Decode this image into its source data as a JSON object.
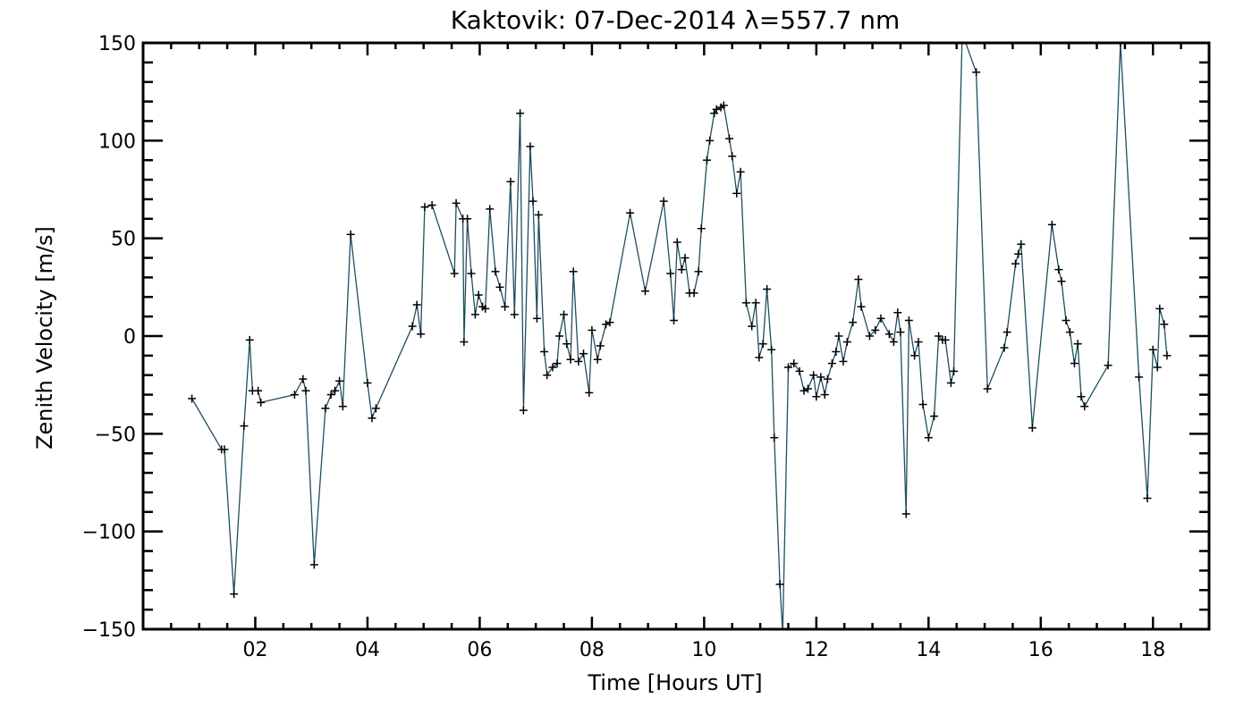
{
  "chart_data": {
    "type": "line",
    "title": "Kaktovik: 07-Dec-2014 λ=557.7 nm",
    "xlabel": "Time [Hours UT]",
    "ylabel": "Zenith Velocity [m/s]",
    "xlim": [
      0.0,
      19.0
    ],
    "ylim": [
      -150,
      150
    ],
    "xticks": [
      {
        "value": 2,
        "label": "02"
      },
      {
        "value": 4,
        "label": "04"
      },
      {
        "value": 6,
        "label": "06"
      },
      {
        "value": 8,
        "label": "08"
      },
      {
        "value": 10,
        "label": "10"
      },
      {
        "value": 12,
        "label": "12"
      },
      {
        "value": 14,
        "label": "14"
      },
      {
        "value": 16,
        "label": "16"
      },
      {
        "value": 18,
        "label": "18"
      }
    ],
    "yticks": [
      {
        "value": -150,
        "label": "−150"
      },
      {
        "value": -100,
        "label": "−100"
      },
      {
        "value": -50,
        "label": "−50"
      },
      {
        "value": 0,
        "label": "0"
      },
      {
        "value": 50,
        "label": "50"
      },
      {
        "value": 100,
        "label": "100"
      },
      {
        "value": 150,
        "label": "150"
      }
    ],
    "grid": false,
    "line_color": "#1f4e5f",
    "marker_color": "#000000",
    "series": [
      {
        "marker": "plus",
        "points": [
          [
            0.87,
            -32
          ],
          [
            1.4,
            -58
          ],
          [
            1.45,
            -58
          ],
          [
            1.62,
            -132
          ],
          [
            1.8,
            -46
          ],
          [
            1.9,
            -2
          ],
          [
            1.95,
            -28
          ],
          [
            2.05,
            -28
          ],
          [
            2.1,
            -34
          ],
          [
            2.7,
            -30
          ],
          [
            2.85,
            -22
          ],
          [
            2.9,
            -28
          ],
          [
            3.05,
            -117
          ],
          [
            3.25,
            -37
          ],
          [
            3.35,
            -30
          ],
          [
            3.42,
            -28
          ],
          [
            3.5,
            -23
          ],
          [
            3.56,
            -36
          ],
          [
            3.7,
            52
          ],
          [
            4.0,
            -24
          ],
          [
            4.08,
            -42
          ],
          [
            4.15,
            -37
          ],
          [
            4.8,
            5
          ],
          [
            4.88,
            16
          ],
          [
            4.95,
            1
          ],
          [
            5.02,
            66
          ],
          [
            5.15,
            67
          ],
          [
            5.55,
            32
          ],
          [
            5.58,
            68
          ],
          [
            5.7,
            60
          ],
          [
            5.72,
            -3
          ],
          [
            5.78,
            60
          ],
          [
            5.85,
            32
          ],
          [
            5.92,
            11
          ],
          [
            5.98,
            21
          ],
          [
            6.05,
            15
          ],
          [
            6.1,
            14
          ],
          [
            6.18,
            65
          ],
          [
            6.28,
            33
          ],
          [
            6.36,
            25
          ],
          [
            6.45,
            15
          ],
          [
            6.55,
            79
          ],
          [
            6.62,
            11
          ],
          [
            6.72,
            114
          ],
          [
            6.78,
            -38
          ],
          [
            6.9,
            97
          ],
          [
            6.95,
            69
          ],
          [
            7.02,
            9
          ],
          [
            7.05,
            62
          ],
          [
            7.15,
            -8
          ],
          [
            7.2,
            -20
          ],
          [
            7.3,
            -16
          ],
          [
            7.38,
            -14
          ],
          [
            7.42,
            0
          ],
          [
            7.5,
            11
          ],
          [
            7.55,
            -4
          ],
          [
            7.62,
            -12
          ],
          [
            7.67,
            33
          ],
          [
            7.76,
            -13
          ],
          [
            7.85,
            -9
          ],
          [
            7.95,
            -29
          ],
          [
            8.0,
            3
          ],
          [
            8.1,
            -12
          ],
          [
            8.15,
            -5
          ],
          [
            8.25,
            6
          ],
          [
            8.32,
            7
          ],
          [
            8.68,
            63
          ],
          [
            8.95,
            23
          ],
          [
            9.28,
            69
          ],
          [
            9.4,
            32
          ],
          [
            9.46,
            8
          ],
          [
            9.52,
            48
          ],
          [
            9.6,
            34
          ],
          [
            9.66,
            40
          ],
          [
            9.74,
            22
          ],
          [
            9.82,
            22
          ],
          [
            9.9,
            33
          ],
          [
            9.95,
            55
          ],
          [
            10.05,
            90
          ],
          [
            10.1,
            100
          ],
          [
            10.18,
            114
          ],
          [
            10.22,
            116
          ],
          [
            10.3,
            117
          ],
          [
            10.35,
            118
          ],
          [
            10.45,
            101
          ],
          [
            10.5,
            92
          ],
          [
            10.58,
            73
          ],
          [
            10.65,
            84
          ],
          [
            10.75,
            17
          ],
          [
            10.85,
            5
          ],
          [
            10.92,
            17
          ],
          [
            10.98,
            -11
          ],
          [
            11.05,
            -4
          ],
          [
            11.12,
            24
          ],
          [
            11.2,
            -7
          ],
          [
            11.25,
            -52
          ],
          [
            11.35,
            -127
          ],
          [
            11.4,
            -152
          ],
          [
            11.5,
            -16
          ],
          [
            11.6,
            -14
          ],
          [
            11.7,
            -18
          ],
          [
            11.78,
            -28
          ],
          [
            11.85,
            -27
          ],
          [
            11.95,
            -20
          ],
          [
            12.0,
            -31
          ],
          [
            12.08,
            -21
          ],
          [
            12.15,
            -30
          ],
          [
            12.2,
            -22
          ],
          [
            12.28,
            -14
          ],
          [
            12.35,
            -8
          ],
          [
            12.4,
            0
          ],
          [
            12.48,
            -13
          ],
          [
            12.55,
            -3
          ],
          [
            12.65,
            7
          ],
          [
            12.75,
            29
          ],
          [
            12.8,
            15
          ],
          [
            12.95,
            0
          ],
          [
            13.05,
            3
          ],
          [
            13.15,
            9
          ],
          [
            13.3,
            1
          ],
          [
            13.38,
            -3
          ],
          [
            13.45,
            12
          ],
          [
            13.5,
            2
          ],
          [
            13.6,
            -91
          ],
          [
            13.65,
            8
          ],
          [
            13.75,
            -10
          ],
          [
            13.82,
            -3
          ],
          [
            13.9,
            -35
          ],
          [
            14.0,
            -52
          ],
          [
            14.1,
            -41
          ],
          [
            14.18,
            0
          ],
          [
            14.25,
            -2
          ],
          [
            14.3,
            -2
          ],
          [
            14.4,
            -24
          ],
          [
            14.45,
            -18
          ],
          [
            14.6,
            155
          ],
          [
            14.85,
            135
          ],
          [
            15.05,
            -27
          ],
          [
            15.35,
            -6
          ],
          [
            15.4,
            2
          ],
          [
            15.55,
            37
          ],
          [
            15.6,
            42
          ],
          [
            15.65,
            47
          ],
          [
            15.85,
            -47
          ],
          [
            16.2,
            57
          ],
          [
            16.32,
            34
          ],
          [
            16.37,
            28
          ],
          [
            16.45,
            8
          ],
          [
            16.52,
            2
          ],
          [
            16.6,
            -14
          ],
          [
            16.66,
            -4
          ],
          [
            16.72,
            -31
          ],
          [
            16.78,
            -36
          ],
          [
            17.2,
            -15
          ],
          [
            17.42,
            150
          ],
          [
            17.75,
            -21
          ],
          [
            17.9,
            -83
          ],
          [
            18.0,
            -7
          ],
          [
            18.08,
            -16
          ],
          [
            18.12,
            14
          ],
          [
            18.2,
            6
          ],
          [
            18.25,
            -10
          ]
        ]
      }
    ]
  }
}
